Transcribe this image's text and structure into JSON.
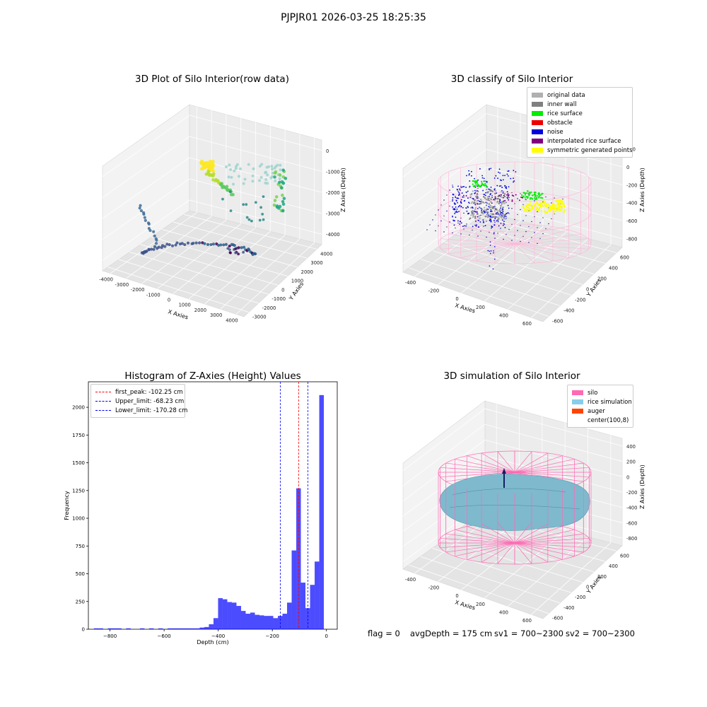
{
  "suptitle": "PJPJR01 2026-03-25 18:25:35",
  "panels": {
    "raw": {
      "title": "3D Plot of Silo Interior(row data)",
      "xlabel": "X Axies",
      "ylabel": "Y Axies",
      "zlabel": "Z Axies (Depth)",
      "xticks": [
        "-4000",
        "-3000",
        "-2000",
        "-1000",
        "0",
        "1000",
        "2000",
        "3000",
        "4000"
      ],
      "yticks": [
        "-3000",
        "-2000",
        "-1000",
        "0",
        "1000",
        "2000",
        "3000",
        "4000"
      ],
      "zticks": [
        "0",
        "-1000",
        "-2000",
        "-3000",
        "-4000"
      ]
    },
    "classify": {
      "title": "3D classify of Silo Interior",
      "xlabel": "X Axies",
      "ylabel": "Y Axies",
      "zlabel": "Z Axies (Depth)",
      "xticks": [
        "-400",
        "-200",
        "0",
        "200",
        "400",
        "600"
      ],
      "yticks": [
        "-600",
        "-400",
        "-200",
        "0",
        "200",
        "400",
        "600"
      ],
      "zticks": [
        "200",
        "0",
        "-200",
        "-400",
        "-600",
        "-800"
      ],
      "legend": [
        {
          "label": "original data",
          "color": "#b0b0b0"
        },
        {
          "label": "inner wall",
          "color": "#808080"
        },
        {
          "label": "rice surface",
          "color": "#00ee00"
        },
        {
          "label": "obstacle",
          "color": "#ee0000"
        },
        {
          "label": "noise",
          "color": "#0000dd"
        },
        {
          "label": "interpolated rice surface",
          "color": "#800080"
        },
        {
          "label": "symmetric generated points",
          "color": "#ffff00"
        }
      ]
    },
    "simulation": {
      "title": "3D simulation of Silo Interior",
      "xlabel": "X Axies",
      "ylabel": "Y Axies",
      "zlabel": "Z Axies (Depth)",
      "xticks": [
        "-400",
        "-200",
        "0",
        "200",
        "400",
        "600"
      ],
      "yticks": [
        "-600",
        "-400",
        "-200",
        "0",
        "200",
        "400",
        "600"
      ],
      "zticks": [
        "400",
        "200",
        "0",
        "-200",
        "-400",
        "-600",
        "-800"
      ],
      "legend": [
        {
          "label": "silo",
          "color": "#ff69b4"
        },
        {
          "label": "rice simulation",
          "color": "#87ceeb"
        },
        {
          "label": "auger",
          "color": "#ff4500"
        },
        {
          "label": "center(100,8)",
          "color": "#ffffff"
        }
      ]
    }
  },
  "status": {
    "flag": "flag = 0",
    "avg": "avgDepth = 175 cm",
    "sv1": "sv1 = 700~2300",
    "sv2": "sv2 = 700~2300"
  },
  "chart_data": [
    {
      "type": "scatter",
      "title": "3D Plot of Silo Interior(row data)",
      "xlabel": "X Axies",
      "ylabel": "Y Axies",
      "zlabel": "Z Axies (Depth)",
      "xlim": [
        -4000,
        4000
      ],
      "ylim": [
        -3000,
        4000
      ],
      "zlim": [
        -4000,
        0
      ]
    },
    {
      "type": "scatter",
      "title": "3D classify of Silo Interior",
      "xlabel": "X Axies",
      "ylabel": "Y Axies",
      "zlabel": "Z Axies (Depth)",
      "xlim": [
        -400,
        600
      ],
      "ylim": [
        -600,
        600
      ],
      "zlim": [
        -800,
        200
      ],
      "series": [
        {
          "name": "original data"
        },
        {
          "name": "inner wall"
        },
        {
          "name": "rice surface"
        },
        {
          "name": "obstacle"
        },
        {
          "name": "noise"
        },
        {
          "name": "interpolated rice surface"
        },
        {
          "name": "symmetric generated points"
        }
      ],
      "legend_position": "top-right"
    },
    {
      "type": "bar",
      "title": "Histogram of Z-Axies (Height) Values",
      "xlabel": "Depth (cm)",
      "ylabel": "Frequency",
      "xlim": [
        -880,
        40
      ],
      "ylim": [
        0,
        2230
      ],
      "xticks": [
        -800,
        -600,
        -400,
        -200,
        0
      ],
      "yticks": [
        0,
        250,
        500,
        750,
        1000,
        1250,
        1500,
        1750,
        2000
      ],
      "bin_width": 17,
      "bins": [
        {
          "x": -851,
          "y": 8
        },
        {
          "x": -834,
          "y": 8
        },
        {
          "x": -817,
          "y": 0
        },
        {
          "x": -800,
          "y": 8
        },
        {
          "x": -783,
          "y": 8
        },
        {
          "x": -766,
          "y": 8
        },
        {
          "x": -749,
          "y": 0
        },
        {
          "x": -732,
          "y": 8
        },
        {
          "x": -715,
          "y": 0
        },
        {
          "x": -698,
          "y": 0
        },
        {
          "x": -681,
          "y": 8
        },
        {
          "x": -664,
          "y": 0
        },
        {
          "x": -647,
          "y": 8
        },
        {
          "x": -630,
          "y": 0
        },
        {
          "x": -613,
          "y": 8
        },
        {
          "x": -596,
          "y": 0
        },
        {
          "x": -579,
          "y": 8
        },
        {
          "x": -562,
          "y": 8
        },
        {
          "x": -545,
          "y": 8
        },
        {
          "x": -528,
          "y": 8
        },
        {
          "x": -511,
          "y": 8
        },
        {
          "x": -494,
          "y": 8
        },
        {
          "x": -477,
          "y": 8
        },
        {
          "x": -460,
          "y": 15
        },
        {
          "x": -443,
          "y": 20
        },
        {
          "x": -426,
          "y": 45
        },
        {
          "x": -409,
          "y": 100
        },
        {
          "x": -392,
          "y": 280
        },
        {
          "x": -375,
          "y": 270
        },
        {
          "x": -358,
          "y": 245
        },
        {
          "x": -341,
          "y": 240
        },
        {
          "x": -324,
          "y": 210
        },
        {
          "x": -307,
          "y": 165
        },
        {
          "x": -290,
          "y": 140
        },
        {
          "x": -273,
          "y": 150
        },
        {
          "x": -256,
          "y": 130
        },
        {
          "x": -239,
          "y": 125
        },
        {
          "x": -222,
          "y": 120
        },
        {
          "x": -205,
          "y": 120
        },
        {
          "x": -188,
          "y": 100
        },
        {
          "x": -171,
          "y": 120
        },
        {
          "x": -154,
          "y": 140
        },
        {
          "x": -137,
          "y": 240
        },
        {
          "x": -120,
          "y": 710
        },
        {
          "x": -103,
          "y": 1270
        },
        {
          "x": -86,
          "y": 420
        },
        {
          "x": -69,
          "y": 190
        },
        {
          "x": -52,
          "y": 400
        },
        {
          "x": -35,
          "y": 610
        },
        {
          "x": -18,
          "y": 2110
        }
      ],
      "lines": [
        {
          "name": "first_peak: -102.25 cm",
          "x": -102.25,
          "color": "#ff0000"
        },
        {
          "name": "Upper_limit: -68.23 cm",
          "x": -68.23,
          "color": "#0000ff"
        },
        {
          "name": "Lower_limit: -170.28 cm",
          "x": -170.28,
          "color": "#0000ff"
        }
      ],
      "bar_color": "#0000ff",
      "legend_position": "top-left"
    },
    {
      "type": "area",
      "title": "3D simulation of Silo Interior",
      "xlabel": "X Axies",
      "ylabel": "Y Axies",
      "zlabel": "Z Axies (Depth)",
      "xlim": [
        -400,
        600
      ],
      "ylim": [
        -600,
        600
      ],
      "zlim": [
        -800,
        400
      ],
      "series": [
        {
          "name": "silo"
        },
        {
          "name": "rice simulation"
        },
        {
          "name": "auger"
        },
        {
          "name": "center(100,8)"
        }
      ],
      "legend_position": "top-right"
    }
  ]
}
